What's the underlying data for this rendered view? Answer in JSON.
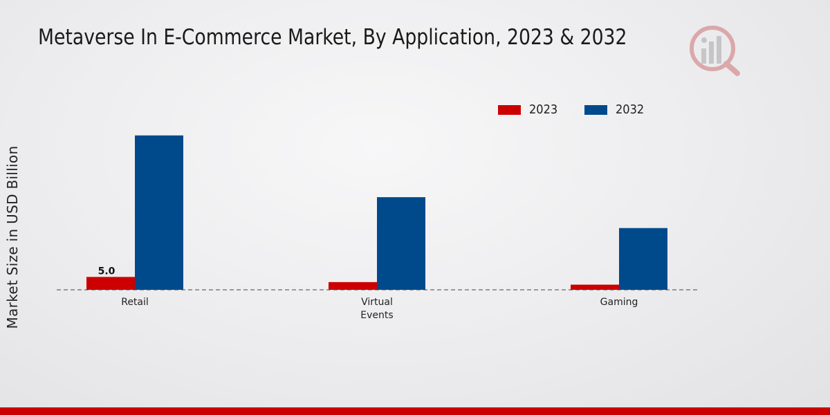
{
  "chart_data": {
    "type": "bar",
    "title": "Metaverse In E-Commerce Market, By Application, 2023 & 2032",
    "xlabel": "",
    "ylabel": "Market Size in USD Billion",
    "categories": [
      "Retail",
      "Virtual\nEvents",
      "Gaming"
    ],
    "series": [
      {
        "name": "2023",
        "color": "#cc0000",
        "values": [
          5.0,
          3.0,
          2.0
        ]
      },
      {
        "name": "2032",
        "color": "#004a8c",
        "values": [
          60.0,
          36.0,
          24.0
        ]
      }
    ],
    "data_labels": [
      {
        "series": "2023",
        "category": "Retail",
        "text": "5.0"
      }
    ],
    "ylim": [
      0,
      75
    ],
    "grid": false,
    "legend_position": "top-right"
  }
}
